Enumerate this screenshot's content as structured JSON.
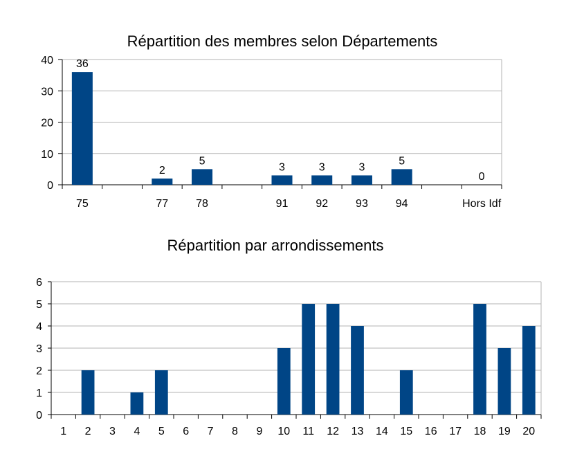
{
  "chart_data": [
    {
      "type": "bar",
      "title": "Répartition des membres selon Départements",
      "categories": [
        "75",
        "",
        "77",
        "78",
        "",
        "91",
        "92",
        "93",
        "94",
        "",
        "Hors Idf"
      ],
      "values": [
        36,
        null,
        2,
        5,
        null,
        3,
        3,
        3,
        5,
        null,
        0
      ],
      "data_labels": [
        "36",
        "",
        "2",
        "5",
        "",
        "3",
        "3",
        "3",
        "5",
        "",
        "0"
      ],
      "ylim": [
        0,
        40
      ],
      "yticks": [
        0,
        10,
        20,
        30,
        40
      ],
      "grid": true,
      "bar_color": "#004586"
    },
    {
      "type": "bar",
      "title": "Répartition par arrondissements",
      "categories": [
        "1",
        "2",
        "3",
        "4",
        "5",
        "6",
        "7",
        "8",
        "9",
        "10",
        "11",
        "12",
        "13",
        "14",
        "15",
        "16",
        "17",
        "18",
        "19",
        "20"
      ],
      "values": [
        0,
        2,
        0,
        1,
        2,
        0,
        0,
        0,
        0,
        3,
        5,
        5,
        4,
        0,
        2,
        0,
        0,
        5,
        3,
        4
      ],
      "ylim": [
        0,
        6
      ],
      "yticks": [
        0,
        1,
        2,
        3,
        4,
        5,
        6
      ],
      "grid": true,
      "bar_color": "#004586"
    }
  ]
}
